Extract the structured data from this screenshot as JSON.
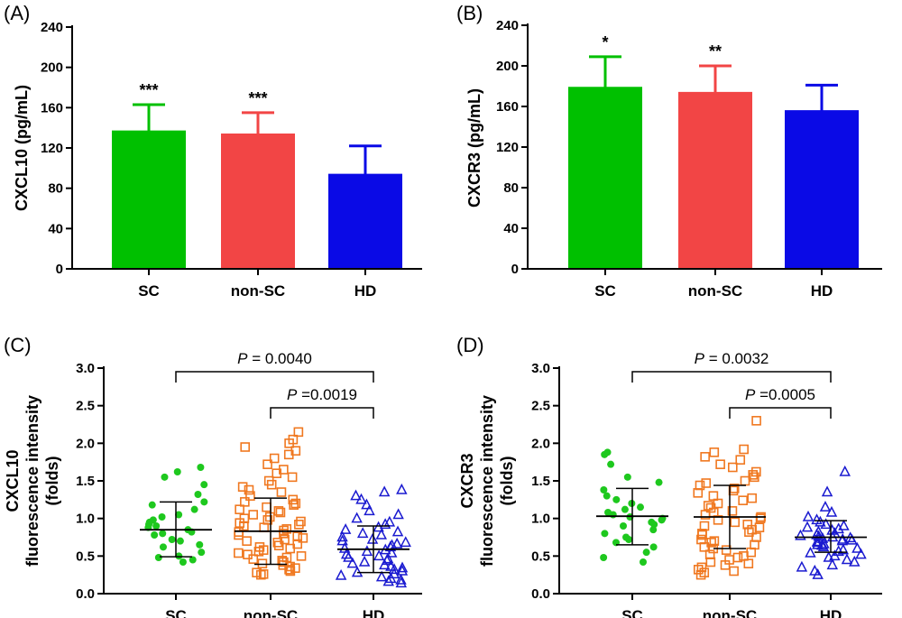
{
  "figure": {
    "panels": [
      "(A)",
      "(B)",
      "(C)",
      "(D)"
    ]
  },
  "colors": {
    "SC": "#00c000",
    "non_SC": "#f24545",
    "HD": "#0a0ae6",
    "SC_points": "#1ec81e",
    "non_SC_points": "#f07820",
    "HD_points": "#1a1ad0"
  },
  "chart_data": [
    {
      "panel": "(A)",
      "type": "bar",
      "categories": [
        "SC",
        "non-SC",
        "HD"
      ],
      "values": [
        136,
        133,
        93
      ],
      "error_upper": [
        163,
        155,
        122
      ],
      "significance": [
        "***",
        "***",
        ""
      ],
      "ylabel": "CXCL10 (pg/mL)",
      "ylim": [
        0,
        240
      ],
      "yticks": [
        "0",
        "40",
        "80",
        "120",
        "160",
        "200",
        "240"
      ],
      "grid": false
    },
    {
      "panel": "(B)",
      "type": "bar",
      "categories": [
        "SC",
        "non-SC",
        "HD"
      ],
      "values": [
        178,
        173,
        155
      ],
      "error_upper": [
        209,
        200,
        181
      ],
      "significance": [
        "*",
        "**",
        ""
      ],
      "ylabel": "CXCR3 (pg/mL)",
      "ylim": [
        0,
        240
      ],
      "yticks": [
        "0",
        "40",
        "80",
        "120",
        "160",
        "200",
        "240"
      ],
      "grid": false
    },
    {
      "panel": "(C)",
      "type": "scatter",
      "categories": [
        "SC",
        "non-SC",
        "HD"
      ],
      "ylabel_lines": [
        "CXCL10",
        "fluorescence intensity",
        "(folds)"
      ],
      "ylim": [
        0,
        3.0
      ],
      "yticks": [
        "0.0",
        "0.5",
        "1.0",
        "1.5",
        "2.0",
        "2.5",
        "3.0"
      ],
      "grid": false,
      "series": [
        {
          "group": "SC",
          "marker": "filled-circle",
          "mean": 0.85,
          "sd_low": 0.49,
          "sd_high": 1.22,
          "values": [
            1.68,
            1.62,
            1.55,
            1.45,
            1.32,
            1.22,
            1.18,
            1.12,
            1.05,
            1.02,
            0.98,
            0.95,
            0.92,
            0.9,
            0.88,
            0.85,
            0.82,
            0.8,
            0.78,
            0.72,
            0.7,
            0.65,
            0.62,
            0.55,
            0.5,
            0.48,
            0.45,
            0.42
          ]
        },
        {
          "group": "non-SC",
          "marker": "open-square",
          "mean": 0.83,
          "sd_low": 0.39,
          "sd_high": 1.27,
          "values": [
            2.15,
            2.05,
            2.0,
            1.95,
            1.9,
            1.85,
            1.8,
            1.72,
            1.65,
            1.6,
            1.55,
            1.5,
            1.45,
            1.42,
            1.38,
            1.35,
            1.3,
            1.25,
            1.22,
            1.2,
            1.18,
            1.15,
            1.12,
            1.1,
            1.08,
            1.05,
            1.02,
            1.0,
            0.98,
            0.96,
            0.94,
            0.92,
            0.9,
            0.88,
            0.86,
            0.84,
            0.82,
            0.8,
            0.78,
            0.76,
            0.74,
            0.72,
            0.7,
            0.68,
            0.66,
            0.64,
            0.62,
            0.6,
            0.58,
            0.56,
            0.54,
            0.52,
            0.5,
            0.48,
            0.46,
            0.44,
            0.42,
            0.4,
            0.38,
            0.36,
            0.34,
            0.32,
            0.3,
            0.28,
            0.26,
            0.25
          ]
        },
        {
          "group": "HD",
          "marker": "open-triangle",
          "mean": 0.59,
          "sd_low": 0.28,
          "sd_high": 0.9,
          "values": [
            1.38,
            1.35,
            1.3,
            1.25,
            1.18,
            1.1,
            1.05,
            1.0,
            0.95,
            0.92,
            0.88,
            0.85,
            0.82,
            0.8,
            0.78,
            0.75,
            0.72,
            0.7,
            0.68,
            0.66,
            0.64,
            0.62,
            0.6,
            0.58,
            0.56,
            0.54,
            0.52,
            0.5,
            0.48,
            0.46,
            0.44,
            0.42,
            0.4,
            0.38,
            0.36,
            0.34,
            0.32,
            0.3,
            0.28,
            0.26,
            0.24,
            0.22,
            0.2,
            0.18,
            0.16,
            0.14
          ]
        }
      ],
      "comparisons": [
        {
          "from": "SC",
          "to": "HD",
          "label_italic": "P",
          "label_rest": " = 0.0040"
        },
        {
          "from": "non-SC",
          "to": "HD",
          "label_italic": "P",
          "label_rest": " =0.0019"
        }
      ]
    },
    {
      "panel": "(D)",
      "type": "scatter",
      "categories": [
        "SC",
        "non-SC",
        "HD"
      ],
      "ylabel_lines": [
        "CXCR3",
        "fluorescence intensity",
        "(folds)"
      ],
      "ylim": [
        0,
        3.0
      ],
      "yticks": [
        "0.0",
        "0.5",
        "1.0",
        "1.5",
        "2.0",
        "2.5",
        "3.0"
      ],
      "grid": false,
      "series": [
        {
          "group": "SC",
          "marker": "filled-circle",
          "mean": 1.03,
          "sd_low": 0.65,
          "sd_high": 1.4,
          "values": [
            1.88,
            1.85,
            1.72,
            1.55,
            1.48,
            1.38,
            1.3,
            1.25,
            1.2,
            1.15,
            1.12,
            1.08,
            1.05,
            1.02,
            1.0,
            0.98,
            0.95,
            0.92,
            0.9,
            0.85,
            0.8,
            0.75,
            0.72,
            0.68,
            0.62,
            0.55,
            0.48,
            0.42
          ]
        },
        {
          "group": "non-SC",
          "marker": "open-square",
          "mean": 1.02,
          "sd_low": 0.6,
          "sd_high": 1.44,
          "values": [
            2.3,
            1.92,
            1.88,
            1.82,
            1.78,
            1.72,
            1.68,
            1.62,
            1.58,
            1.55,
            1.5,
            1.47,
            1.44,
            1.4,
            1.37,
            1.34,
            1.3,
            1.27,
            1.24,
            1.2,
            1.17,
            1.14,
            1.1,
            1.08,
            1.05,
            1.02,
            1.0,
            0.98,
            0.95,
            0.92,
            0.9,
            0.88,
            0.85,
            0.82,
            0.8,
            0.78,
            0.75,
            0.72,
            0.7,
            0.68,
            0.65,
            0.62,
            0.6,
            0.58,
            0.55,
            0.52,
            0.5,
            0.48,
            0.45,
            0.42,
            0.4,
            0.38,
            0.35,
            0.32,
            0.3,
            0.28,
            0.25
          ]
        },
        {
          "group": "HD",
          "marker": "open-triangle",
          "mean": 0.75,
          "sd_low": 0.55,
          "sd_high": 0.97,
          "values": [
            1.62,
            1.35,
            1.15,
            1.08,
            1.02,
            0.98,
            0.95,
            0.92,
            0.9,
            0.88,
            0.86,
            0.84,
            0.82,
            0.8,
            0.78,
            0.77,
            0.76,
            0.75,
            0.74,
            0.73,
            0.72,
            0.71,
            0.7,
            0.69,
            0.68,
            0.66,
            0.65,
            0.64,
            0.62,
            0.6,
            0.58,
            0.56,
            0.54,
            0.52,
            0.5,
            0.48,
            0.45,
            0.42,
            0.38,
            0.35,
            0.3,
            0.25
          ]
        }
      ],
      "comparisons": [
        {
          "from": "SC",
          "to": "HD",
          "label_italic": "P",
          "label_rest": " = 0.0032"
        },
        {
          "from": "non-SC",
          "to": "HD",
          "label_italic": "P",
          "label_rest": " =0.0005"
        }
      ]
    }
  ]
}
